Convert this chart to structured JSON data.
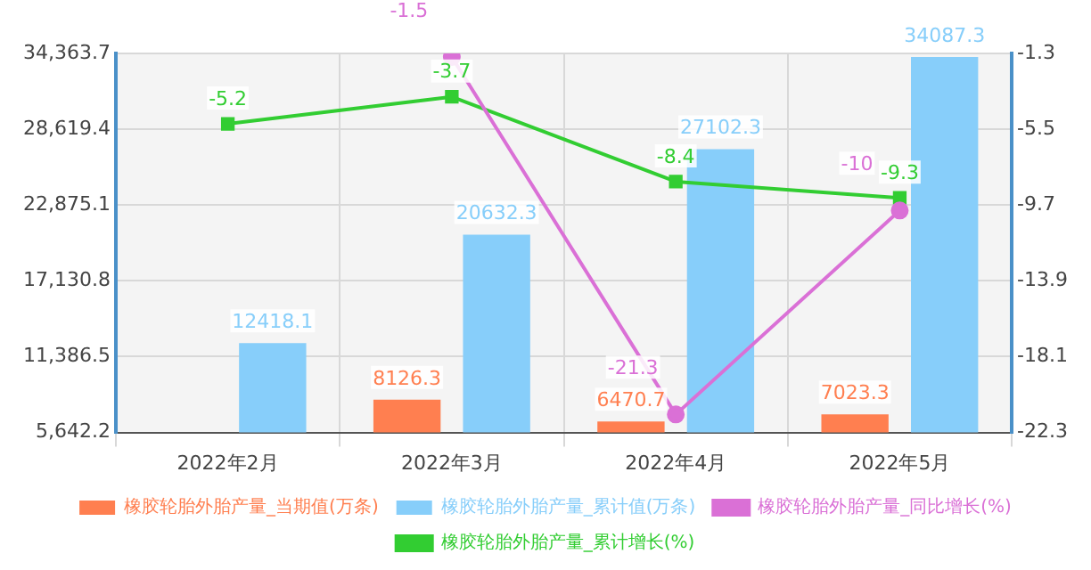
{
  "chart_data": {
    "type": "bar",
    "categories": [
      "2022年2月",
      "2022年3月",
      "2022年4月",
      "2022年5月"
    ],
    "series": [
      {
        "name": "橡胶轮胎外胎产量_当期值(万条)",
        "color": "#ff7f50",
        "values": [
          null,
          8126.3,
          6470.7,
          7023.3
        ]
      },
      {
        "name": "橡胶轮胎外胎产量_累计值(万条)",
        "color": "#87cefa",
        "values": [
          12418.1,
          20632.3,
          27102.3,
          34087.3
        ]
      },
      {
        "name": "橡胶轮胎外胎产量_同比增长(%)",
        "type": "line",
        "axis": "y2",
        "marker": "circle",
        "color": "#da70d6",
        "values": [
          null,
          -1.5,
          -21.3,
          -10
        ]
      },
      {
        "name": "橡胶轮胎外胎产量_累计增长(%)",
        "type": "line",
        "axis": "y2",
        "marker": "square",
        "color": "#32cd32",
        "values": [
          -5.2,
          -3.7,
          -8.4,
          -9.3
        ]
      }
    ],
    "ylim": [
      5642.2,
      34363.7
    ],
    "yticks": [
      {
        "value": 5642.2,
        "label": "5,642.2"
      },
      {
        "value": 11386.5,
        "label": "11,386.5"
      },
      {
        "value": 17130.8,
        "label": "17,130.8"
      },
      {
        "value": 22875.1,
        "label": "22,875.1"
      },
      {
        "value": 28619.4,
        "label": "28,619.4"
      },
      {
        "value": 34363.7,
        "label": "34,363.7"
      }
    ],
    "y2lim": [
      -22.3,
      -1.3
    ],
    "y2ticks": [
      -22.3,
      -18.1,
      -13.9,
      -9.7,
      -5.5,
      -1.3
    ],
    "grid": true,
    "legend": "bottom",
    "data_labels": true
  }
}
